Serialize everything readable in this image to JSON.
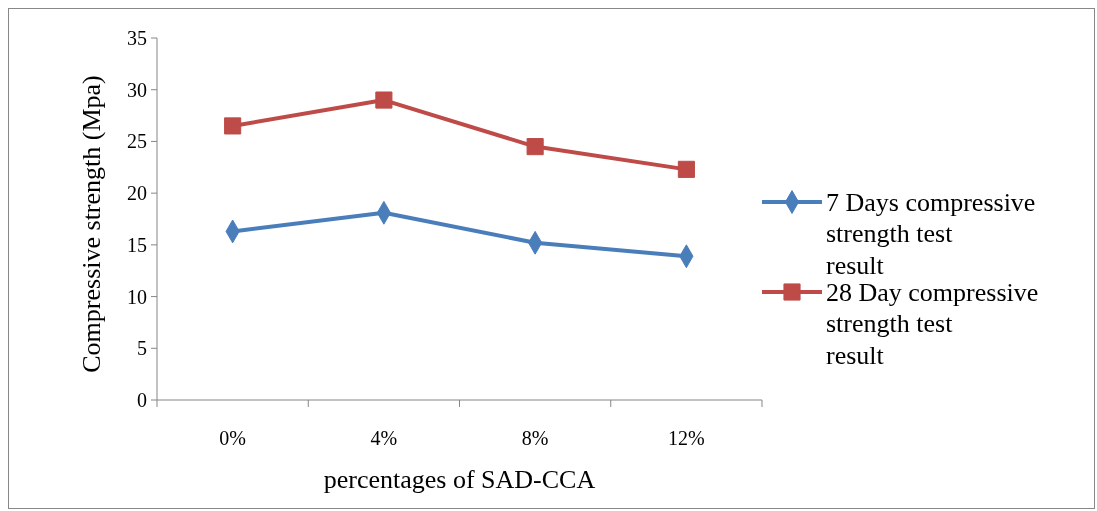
{
  "chart_data": {
    "type": "line",
    "xlabel": "percentages of SAD-CCA",
    "ylabel": "Compressive strength (Mpa)",
    "categories": [
      "0%",
      "4%",
      "8%",
      "12%"
    ],
    "ylim": [
      0,
      35
    ],
    "yticks": [
      0,
      5,
      10,
      15,
      20,
      25,
      30,
      35
    ],
    "grid": false,
    "legend": "right",
    "series": [
      {
        "name": "7 Days compressive strength test result",
        "color": "#4a7ebb",
        "marker": "diamond",
        "values": [
          16.3,
          18.1,
          15.2,
          13.9
        ]
      },
      {
        "name": "28 Day compressive strength test result",
        "color": "#be4b48",
        "marker": "square",
        "values": [
          26.5,
          29.0,
          24.5,
          22.3
        ]
      }
    ]
  }
}
